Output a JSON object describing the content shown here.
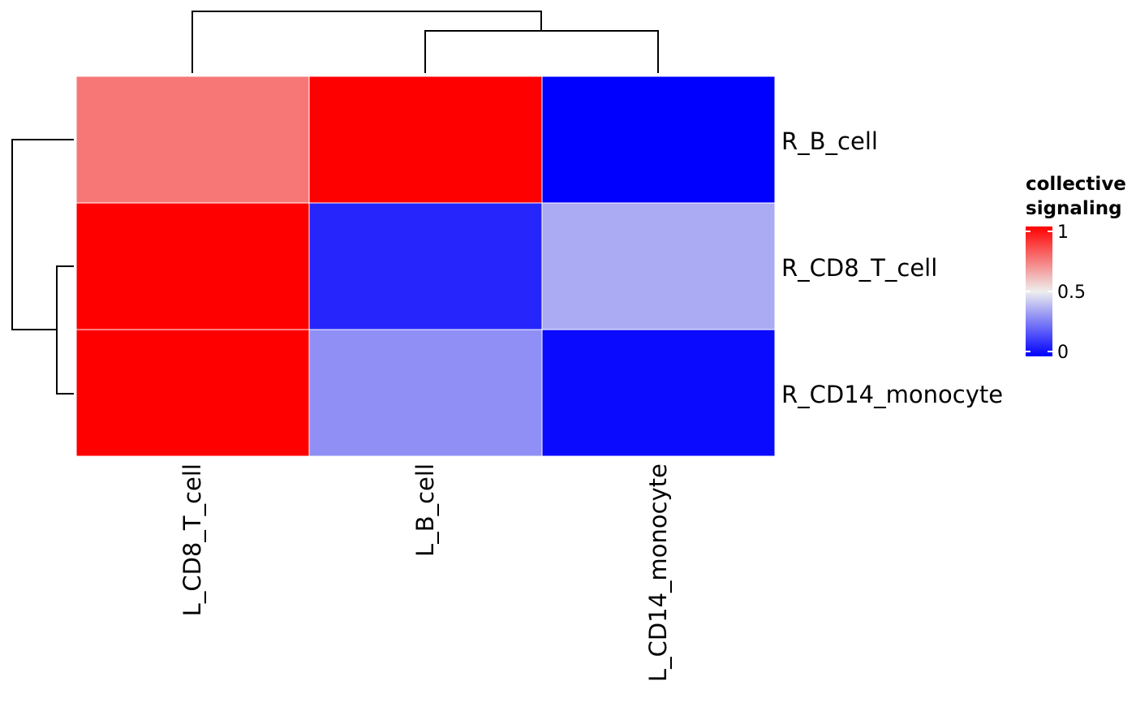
{
  "chart_data": {
    "type": "heatmap",
    "columns": [
      "L_CD8_T_cell",
      "L_B_cell",
      "L_CD14_monocyte"
    ],
    "rows": [
      "R_B_cell",
      "R_CD8_T_cell",
      "R_CD14_monocyte"
    ],
    "values": [
      [
        0.75,
        1.0,
        0.0
      ],
      [
        1.0,
        0.08,
        0.36
      ],
      [
        1.0,
        0.3,
        0.02
      ]
    ],
    "colorscale": {
      "low": "#0000ff",
      "mid": "#eeeeee",
      "high": "#ff0000",
      "domain": [
        0,
        0.5,
        1
      ]
    },
    "legend": {
      "title_lines": [
        "collective",
        "signaling"
      ],
      "ticks": [
        1,
        0.5,
        0
      ],
      "tick_labels": [
        "1",
        "0.5",
        "0"
      ]
    },
    "column_dendrogram": "((L_B_cell, L_CD14_monocyte), L_CD8_T_cell)",
    "row_dendrogram": "((R_CD8_T_cell, R_CD14_monocyte), R_B_cell)"
  }
}
